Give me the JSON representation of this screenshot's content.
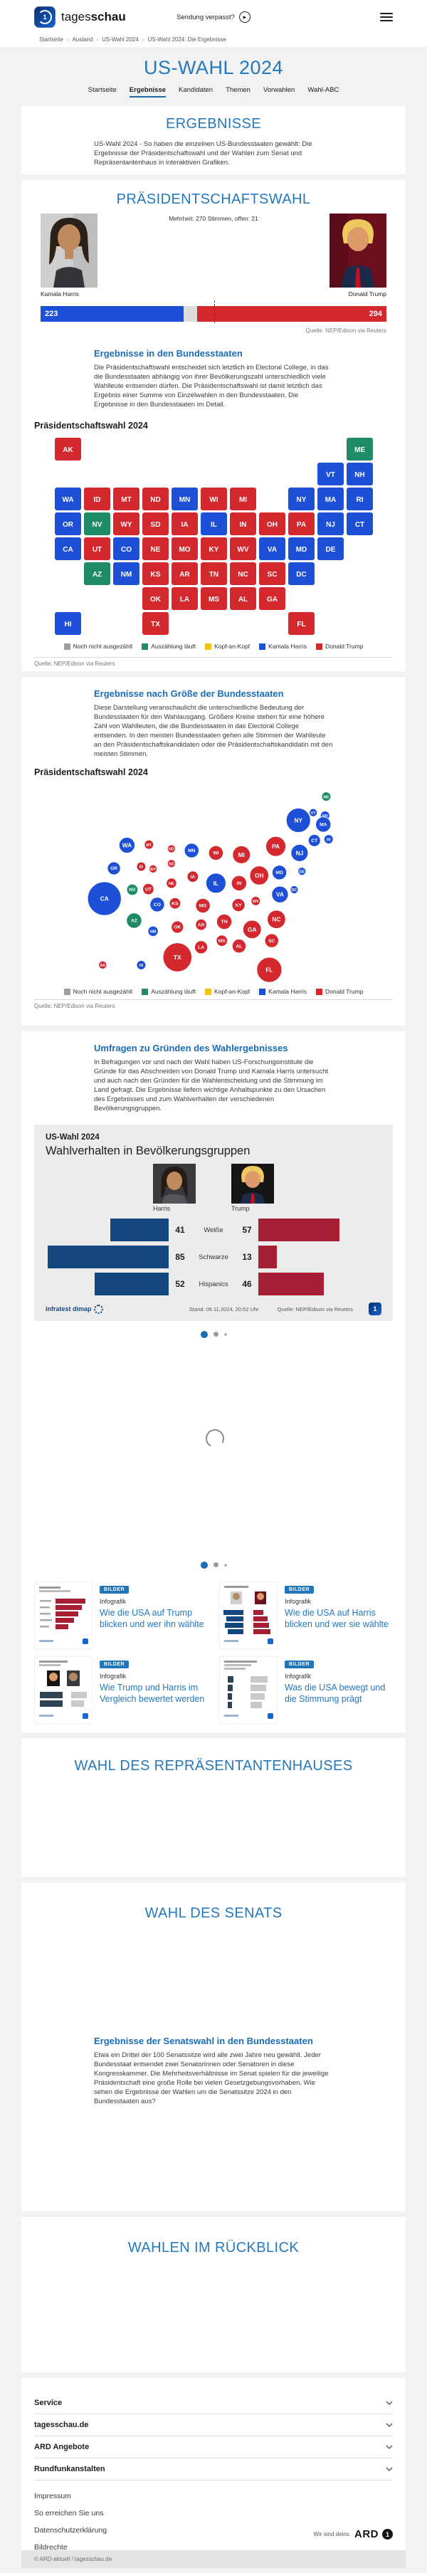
{
  "colors": {
    "harris": "#1d4fd7",
    "trump": "#d3282e",
    "counting": "#1e8a68",
    "tossup": "#f0c419",
    "undecided": "#9e9e9e",
    "info_harris": "#14477e",
    "info_trump": "#a51e33",
    "heading_blue": "#2478bd",
    "link_blue": "#1a6cb4"
  },
  "header": {
    "brand_light": "tages",
    "brand_bold": "schau",
    "missed_label": "Sendung verpasst?"
  },
  "breadcrumb": {
    "items": [
      "Startseite",
      "Ausland",
      "US-Wahl 2024",
      "US-Wahl 2024: Die Ergebnisse"
    ]
  },
  "page_title": "US-WAHL 2024",
  "tabs": [
    "Startseite",
    "Ergebnisse",
    "Kandidaten",
    "Themen",
    "Vorwahlen",
    "Wahl-ABC"
  ],
  "map_legend": {
    "items": [
      {
        "key": "undecided",
        "label": "Noch nicht ausgezählt"
      },
      {
        "key": "counting",
        "label": "Auszählung läuft"
      },
      {
        "key": "tossup",
        "label": "Kopf-an-Kopf"
      },
      {
        "key": "harris",
        "label": "Kamala Harris"
      },
      {
        "key": "trump",
        "label": "Donald Trump"
      }
    ]
  },
  "sections": {
    "ergebnisse": {
      "title": "ERGEBNISSE",
      "intro": "US-Wahl 2024 - So haben die einzelnen US-Bundesstaaten gewählt: Die Ergebnisse der Präsidentschaftswahl und der Wahlen zum Senat und Repräsentantenhaus in interaktiven Grafiken."
    },
    "praesidentschaftswahl": {
      "title": "PRÄSIDENTSCHAFTSWAHL",
      "majority_note": "Mehrheit: 270 Stimmen, offen: 21",
      "harris_name": "Kamala Harris",
      "trump_name": "Donald Trump",
      "harris_votes": "223",
      "trump_votes": "294",
      "quelle": "Quelle: NEP/Edison via Reuters"
    },
    "bundesstaaten": {
      "heading": "Ergebnisse in den Bundesstaaten",
      "text": "Die Präsidentschaftswahl entscheidet sich letztlich im Electoral College, in das die Bundesstaaten abhängig von ihrer Bevölkerungszahl unterschiedlich viele Wahlleute entsenden dürfen. Die Präsidentschaftswahl ist damit letztlich das Ergebnis einer Summe von Einzelwahlen in den Bundesstaaten. Die Ergebnisse in den Bundesstaaten im Detail.",
      "chart_title": "Präsidentschaftswahl 2024",
      "quelle": "Quelle: NEP/Edison via Reuters"
    },
    "groesse": {
      "heading": "Ergebnisse nach Größe der Bundesstaaten",
      "text": "Diese Darstellung veranschaulicht die unterschiedliche Bedeutung der Bundesstaaten für den Wahlausgang. Größere Kreise stehen für eine höhere Zahl von Wahlleuten, die die Bundesstaaten in das Electoral College entsenden. In den meisten Bundesstaaten gehen alle Stimmen der Wahlleute an den Präsidentschaftskandidaten oder die Präsidentschaftskandidatin mit den meisten Stimmen.",
      "chart_title": "Präsidentschaftswahl 2024",
      "quelle": "Quelle: NEP/Edison via Reuters"
    },
    "umfragen": {
      "heading": "Umfragen zu Gründen des Wahlergebnisses",
      "text": "In Befragungen vor und nach der Wahl haben US-Forschungsinstitute die Gründe für das Abschneiden von Donald Trump und Kamala Harris untersucht und auch nach den Gründen für die Wahlentscheidung und die Stimmung im Land gefragt. Die Ergebnisse liefern wichtige Anhaltspunkte zu den Ursachen des Ergebnisses und zum Wahlverhalten der verschiedenen Bevölkerungsgruppen."
    },
    "repraesentantenhaus": {
      "title": "WAHL DES REPRÄSENTANTENHAUSES"
    },
    "senat": {
      "title": "WAHL DES SENATS",
      "heading": "Ergebnisse der Senatswahl in den Bundesstaaten",
      "text": "Etwa ein Drittel der 100 Senatssitze wird alle zwei Jahre neu gewählt. Jeder Bundesstaat entsendet zwei Senatorinnen oder Senatoren in diese Kongresskammer. Die Mehrheitsverhältnisse im Senat spielen für die jeweilige Präsidentschaft eine große Rolle bei vielen Gesetzgebungsvorhaben. Wie sehen die Ergebnisse der Wahlen um die Senatssitze 2024 in den Bundesstaaten aus?"
    },
    "rueckblick": {
      "title": "WAHLEN IM RÜCKBLICK"
    }
  },
  "infographic": {
    "kicker": "US-Wahl 2024",
    "title": "Wahlverhalten in Bevölkerungsgruppen",
    "col_left": "Harris",
    "col_right": "Trump",
    "brand": "infratest dimap",
    "stand": "Stand:  06.11.2024, 20:52 Uhr",
    "quelle": "Quelle: NEP/Edison via Reuters"
  },
  "teasers": [
    {
      "badge": "BILDER",
      "kicker": "Infografik",
      "title": "Wie die USA auf Trump blicken und wer ihn wählte"
    },
    {
      "badge": "BILDER",
      "kicker": "Infografik",
      "title": "Wie die USA auf Harris blicken und wer sie wählte"
    },
    {
      "badge": "BILDER",
      "kicker": "Infografik",
      "title": "Wie Trump und Harris im Vergleich bewertet werden"
    },
    {
      "badge": "BILDER",
      "kicker": "Infografik",
      "title": "Was die USA bewegt und die Stimmung prägt"
    }
  ],
  "footer": {
    "accordions": [
      "Service",
      "tagesschau.de",
      "ARD Angebote",
      "Rundfunkanstalten"
    ],
    "links": [
      "Impressum",
      "So erreichen Sie uns",
      "Datenschutzerklärung",
      "Bildrechte"
    ],
    "ard_claim": "Wir sind deins.",
    "ard_word": "ARD",
    "copyright": "© ARD-aktuell / tagesschau.de"
  },
  "chart_data": [
    {
      "type": "map-choropleth",
      "title": "Präsidentschaftswahl 2024",
      "legend": [
        "Noch nicht ausgezählt",
        "Auszählung läuft",
        "Kopf-an-Kopf",
        "Kamala Harris",
        "Donald Trump"
      ],
      "states": [
        {
          "abbr": "AK",
          "ev": 3,
          "result": "trump",
          "col": 0,
          "row": 0,
          "x": 65,
          "y": 307,
          "r": 6.7
        },
        {
          "abbr": "ME",
          "ev": 4,
          "result": "counting",
          "col": 10,
          "row": 0,
          "x": 442,
          "y": 23,
          "r": 7.7
        },
        {
          "abbr": "VT",
          "ev": 3,
          "result": "harris",
          "col": 9,
          "row": 1,
          "x": 420,
          "y": 50,
          "r": 6.7
        },
        {
          "abbr": "NH",
          "ev": 4,
          "result": "harris",
          "col": 10,
          "row": 1,
          "x": 440,
          "y": 55,
          "r": 7.7
        },
        {
          "abbr": "WA",
          "ev": 12,
          "result": "harris",
          "col": 0,
          "row": 2,
          "x": 106,
          "y": 105,
          "r": 13.3
        },
        {
          "abbr": "ID",
          "ev": 4,
          "result": "trump",
          "col": 1,
          "row": 2,
          "x": 130,
          "y": 141,
          "r": 7.7
        },
        {
          "abbr": "MT",
          "ev": 4,
          "result": "trump",
          "col": 2,
          "row": 2,
          "x": 143,
          "y": 104,
          "r": 7.7
        },
        {
          "abbr": "ND",
          "ev": 3,
          "result": "trump",
          "col": 3,
          "row": 2,
          "x": 181,
          "y": 111,
          "r": 6.7
        },
        {
          "abbr": "MN",
          "ev": 10,
          "result": "harris",
          "col": 4,
          "row": 2,
          "x": 215,
          "y": 114,
          "r": 12.2
        },
        {
          "abbr": "WI",
          "ev": 10,
          "result": "trump",
          "col": 5,
          "row": 2,
          "x": 256,
          "y": 118,
          "r": 12.2
        },
        {
          "abbr": "MI",
          "ev": 15,
          "result": "trump",
          "col": 6,
          "row": 2,
          "x": 299,
          "y": 121,
          "r": 14.9
        },
        {
          "abbr": "NY",
          "ev": 28,
          "result": "harris",
          "col": 8,
          "row": 2,
          "x": 395,
          "y": 63,
          "r": 20.4
        },
        {
          "abbr": "MA",
          "ev": 11,
          "result": "harris",
          "col": 9,
          "row": 2,
          "x": 437,
          "y": 70,
          "r": 12.8
        },
        {
          "abbr": "RI",
          "ev": 4,
          "result": "harris",
          "col": 10,
          "row": 2,
          "x": 446,
          "y": 95,
          "r": 7.7
        },
        {
          "abbr": "OR",
          "ev": 8,
          "result": "harris",
          "col": 0,
          "row": 3,
          "x": 84,
          "y": 144,
          "r": 10.9
        },
        {
          "abbr": "NV",
          "ev": 6,
          "result": "counting",
          "col": 1,
          "row": 3,
          "x": 115,
          "y": 180,
          "r": 9.4
        },
        {
          "abbr": "WY",
          "ev": 3,
          "result": "trump",
          "col": 2,
          "row": 3,
          "x": 150,
          "y": 145,
          "r": 6.7
        },
        {
          "abbr": "SD",
          "ev": 3,
          "result": "trump",
          "col": 3,
          "row": 3,
          "x": 181,
          "y": 136,
          "r": 6.7
        },
        {
          "abbr": "IA",
          "ev": 6,
          "result": "trump",
          "col": 4,
          "row": 3,
          "x": 217,
          "y": 158,
          "r": 9.4
        },
        {
          "abbr": "IL",
          "ev": 19,
          "result": "harris",
          "col": 5,
          "row": 3,
          "x": 256,
          "y": 169,
          "r": 16.8
        },
        {
          "abbr": "IN",
          "ev": 11,
          "result": "trump",
          "col": 6,
          "row": 3,
          "x": 295,
          "y": 169,
          "r": 12.8
        },
        {
          "abbr": "OH",
          "ev": 17,
          "result": "trump",
          "col": 7,
          "row": 3,
          "x": 329,
          "y": 156,
          "r": 15.9
        },
        {
          "abbr": "PA",
          "ev": 19,
          "result": "trump",
          "col": 8,
          "row": 3,
          "x": 357,
          "y": 107,
          "r": 16.8
        },
        {
          "abbr": "NJ",
          "ev": 14,
          "result": "harris",
          "col": 9,
          "row": 3,
          "x": 397,
          "y": 118,
          "r": 14.4
        },
        {
          "abbr": "CT",
          "ev": 7,
          "result": "harris",
          "col": 10,
          "row": 3,
          "x": 422,
          "y": 97,
          "r": 10.2
        },
        {
          "abbr": "CA",
          "ev": 54,
          "result": "harris",
          "col": 0,
          "row": 4,
          "x": 68,
          "y": 195,
          "r": 28.3
        },
        {
          "abbr": "UT",
          "ev": 6,
          "result": "trump",
          "col": 1,
          "row": 4,
          "x": 142,
          "y": 179,
          "r": 9.4
        },
        {
          "abbr": "CO",
          "ev": 10,
          "result": "harris",
          "col": 2,
          "row": 4,
          "x": 157,
          "y": 205,
          "r": 12.2
        },
        {
          "abbr": "NE",
          "ev": 5,
          "result": "trump",
          "col": 3,
          "row": 4,
          "x": 181,
          "y": 169,
          "r": 8.6
        },
        {
          "abbr": "MO",
          "ev": 10,
          "result": "trump",
          "col": 4,
          "row": 4,
          "x": 234,
          "y": 207,
          "r": 12.2
        },
        {
          "abbr": "KY",
          "ev": 8,
          "result": "trump",
          "col": 5,
          "row": 4,
          "x": 294,
          "y": 206,
          "r": 10.9
        },
        {
          "abbr": "WV",
          "ev": 4,
          "result": "trump",
          "col": 6,
          "row": 4,
          "x": 323,
          "y": 199,
          "r": 7.7
        },
        {
          "abbr": "VA",
          "ev": 13,
          "result": "harris",
          "col": 7,
          "row": 4,
          "x": 364,
          "y": 188,
          "r": 13.9
        },
        {
          "abbr": "MD",
          "ev": 10,
          "result": "harris",
          "col": 8,
          "row": 4,
          "x": 363,
          "y": 151,
          "r": 12.2
        },
        {
          "abbr": "DE",
          "ev": 3,
          "result": "harris",
          "col": 9,
          "row": 4,
          "x": 401,
          "y": 149,
          "r": 6.7
        },
        {
          "abbr": "AZ",
          "ev": 11,
          "result": "counting",
          "col": 1,
          "row": 5,
          "x": 118,
          "y": 232,
          "r": 12.8
        },
        {
          "abbr": "NM",
          "ev": 5,
          "result": "harris",
          "col": 2,
          "row": 5,
          "x": 150,
          "y": 250,
          "r": 8.6
        },
        {
          "abbr": "KS",
          "ev": 6,
          "result": "trump",
          "col": 3,
          "row": 5,
          "x": 187,
          "y": 203,
          "r": 9.4
        },
        {
          "abbr": "AR",
          "ev": 6,
          "result": "trump",
          "col": 4,
          "row": 5,
          "x": 231,
          "y": 239,
          "r": 9.4
        },
        {
          "abbr": "TN",
          "ev": 11,
          "result": "trump",
          "col": 5,
          "row": 5,
          "x": 270,
          "y": 234,
          "r": 12.8
        },
        {
          "abbr": "NC",
          "ev": 16,
          "result": "trump",
          "col": 6,
          "row": 5,
          "x": 358,
          "y": 230,
          "r": 15.4
        },
        {
          "abbr": "SC",
          "ev": 9,
          "result": "trump",
          "col": 7,
          "row": 5,
          "x": 350,
          "y": 266,
          "r": 11.6
        },
        {
          "abbr": "DC",
          "ev": 3,
          "result": "harris",
          "col": 8,
          "row": 5,
          "x": 388,
          "y": 180,
          "r": 6.7
        },
        {
          "abbr": "OK",
          "ev": 7,
          "result": "trump",
          "col": 3,
          "row": 6,
          "x": 191,
          "y": 243,
          "r": 10.2
        },
        {
          "abbr": "LA",
          "ev": 8,
          "result": "trump",
          "col": 4,
          "row": 6,
          "x": 231,
          "y": 277,
          "r": 10.9
        },
        {
          "abbr": "MS",
          "ev": 6,
          "result": "trump",
          "col": 5,
          "row": 6,
          "x": 266,
          "y": 266,
          "r": 9.4
        },
        {
          "abbr": "AL",
          "ev": 9,
          "result": "trump",
          "col": 6,
          "row": 6,
          "x": 295,
          "y": 275,
          "r": 11.6
        },
        {
          "abbr": "GA",
          "ev": 16,
          "result": "trump",
          "col": 7,
          "row": 6,
          "x": 317,
          "y": 247,
          "r": 15.4
        },
        {
          "abbr": "HI",
          "ev": 4,
          "result": "harris",
          "col": 0,
          "row": 7,
          "x": 130,
          "y": 307,
          "r": 7.7
        },
        {
          "abbr": "TX",
          "ev": 40,
          "result": "trump",
          "col": 3,
          "row": 7,
          "x": 191,
          "y": 294,
          "r": 24.3
        },
        {
          "abbr": "FL",
          "ev": 30,
          "result": "trump",
          "col": 8,
          "row": 7,
          "x": 346,
          "y": 315,
          "r": 21.1
        }
      ]
    },
    {
      "type": "cartogram-bubbles",
      "title": "Präsidentschaftswahl 2024",
      "note": "Kreisfläche proportional zur Zahl der Wahlleute (Electoral College); Positionen und Größen aus chart_data[0].states (x, y, r, ev, result)"
    },
    {
      "type": "bar-grouped",
      "title": "Wahlverhalten in Bevölkerungsgruppen",
      "categories": [
        "Weiße",
        "Schwarze",
        "Hispanics"
      ],
      "series": [
        {
          "name": "Harris",
          "values": [
            41,
            85,
            52
          ]
        },
        {
          "name": "Trump",
          "values": [
            57,
            13,
            46
          ]
        }
      ],
      "rows": [
        {
          "label": "Weiße",
          "harris": 41,
          "trump": 57
        },
        {
          "label": "Schwarze",
          "harris": 85,
          "trump": 13
        },
        {
          "label": "Hispanics",
          "harris": 52,
          "trump": 46
        }
      ],
      "xlim": [
        0,
        100
      ]
    },
    {
      "type": "bar-stacked",
      "title": "Electoral College Gesamtergebnis",
      "harris": 223,
      "open": 21,
      "trump": 294,
      "majority": 270,
      "total": 538
    }
  ]
}
